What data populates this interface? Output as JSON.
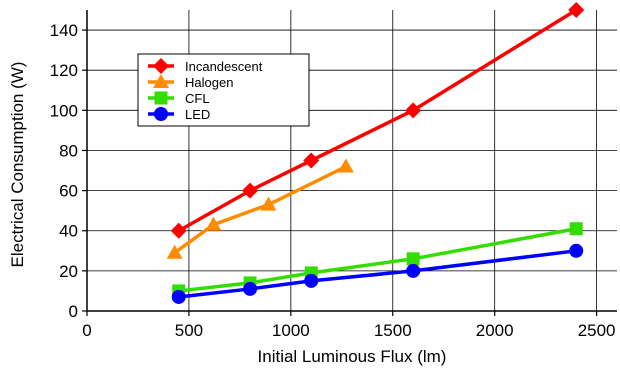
{
  "chart_data": {
    "type": "line",
    "title": "",
    "xlabel": "Initial Luminous Flux (lm)",
    "ylabel": "Electrical Consumption (W)",
    "xlim": [
      0,
      2600
    ],
    "ylim": [
      0,
      150
    ],
    "xticks": [
      0,
      500,
      1000,
      1500,
      2000,
      2500
    ],
    "yticks": [
      0,
      20,
      40,
      60,
      80,
      100,
      120,
      140
    ],
    "grid": true,
    "legend_position": "top-left",
    "series": [
      {
        "name": "Incandescent",
        "color": "#ff0000",
        "marker": "diamond",
        "x": [
          450,
          800,
          1100,
          1600,
          2400
        ],
        "y": [
          40,
          60,
          75,
          100,
          150
        ]
      },
      {
        "name": "Halogen",
        "color": "#ff8c00",
        "marker": "triangle",
        "x": [
          430,
          620,
          890,
          1270
        ],
        "y": [
          29,
          43,
          53,
          72
        ]
      },
      {
        "name": "CFL",
        "color": "#33dd00",
        "marker": "square",
        "x": [
          450,
          800,
          1100,
          1600,
          2400
        ],
        "y": [
          10,
          14,
          19,
          26,
          41
        ]
      },
      {
        "name": "LED",
        "color": "#0000ff",
        "marker": "circle",
        "x": [
          450,
          800,
          1100,
          1600,
          2400
        ],
        "y": [
          7,
          11,
          15,
          20,
          30
        ]
      }
    ]
  }
}
